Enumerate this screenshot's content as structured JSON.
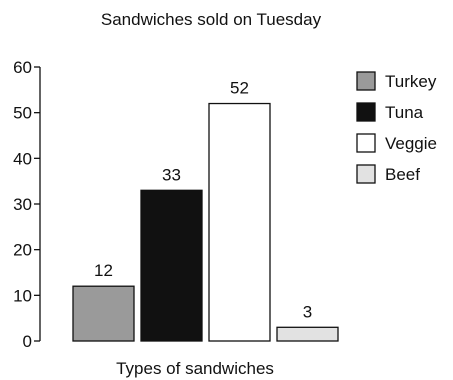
{
  "chart_data": {
    "type": "bar",
    "title": "Sandwiches sold on Tuesday",
    "xlabel": "Types of sandwiches",
    "ylabel": "",
    "categories": [
      "Turkey",
      "Tuna",
      "Veggie",
      "Beef"
    ],
    "values": [
      12,
      33,
      52,
      3
    ],
    "colors": [
      "#9a9a9a",
      "#111111",
      "#ffffff",
      "#e2e2e2"
    ],
    "bar_outline_color": "#111111",
    "ylim": [
      0,
      60
    ],
    "yticks": [
      0,
      10,
      20,
      30,
      40,
      50,
      60
    ],
    "data_labels": true,
    "grid": false,
    "legend": {
      "placement": "right"
    }
  }
}
